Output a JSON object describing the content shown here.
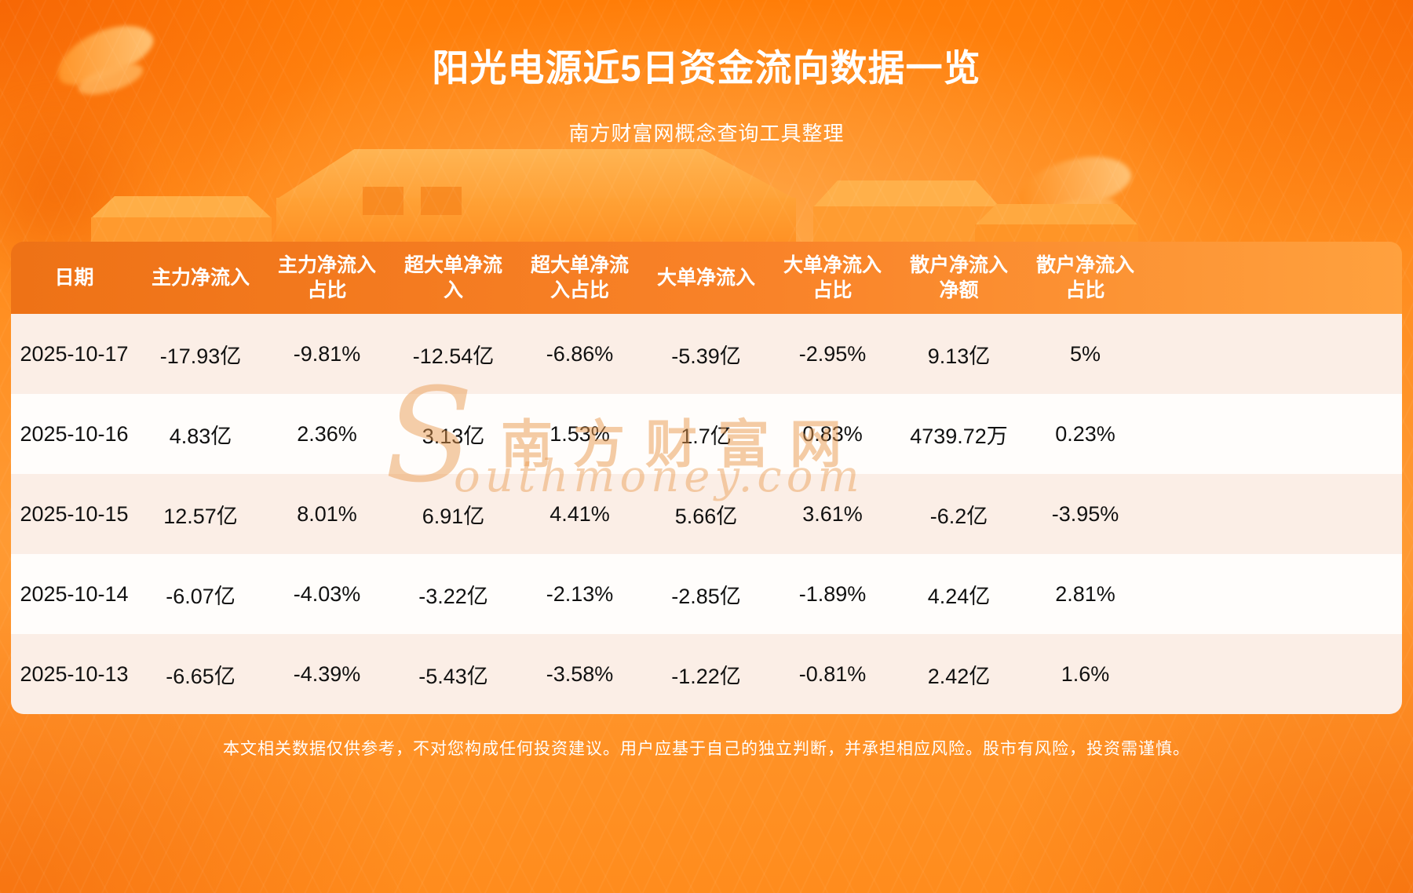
{
  "page": {
    "title": "阳光电源近5日资金流向数据一览",
    "subtitle": "南方财富网概念查询工具整理",
    "disclaimer": "本文相关数据仅供参考，不对您构成任何投资建议。用户应基于自己的独立判断，并承担相应风险。股市有风险，投资需谨慎。"
  },
  "watermark": {
    "initial": "S",
    "cn": "南方财富网",
    "en": "outhmoney.com"
  },
  "chart_data": {
    "type": "table",
    "title": "阳光电源近5日资金流向数据一览",
    "columns": [
      "日期",
      "主力净流入",
      "主力净流入占比",
      "超大单净流入",
      "超大单净流入占比",
      "大单净流入",
      "大单净流入占比",
      "散户净流入净额",
      "散户净流入占比"
    ],
    "rows": [
      [
        "2025-10-17",
        "-17.93亿",
        "-9.81%",
        "-12.54亿",
        "-6.86%",
        "-5.39亿",
        "-2.95%",
        "9.13亿",
        "5%"
      ],
      [
        "2025-10-16",
        "4.83亿",
        "2.36%",
        "3.13亿",
        "1.53%",
        "1.7亿",
        "0.83%",
        "4739.72万",
        "0.23%"
      ],
      [
        "2025-10-15",
        "12.57亿",
        "8.01%",
        "6.91亿",
        "4.41%",
        "5.66亿",
        "3.61%",
        "-6.2亿",
        "-3.95%"
      ],
      [
        "2025-10-14",
        "-6.07亿",
        "-4.03%",
        "-3.22亿",
        "-2.13%",
        "-2.85亿",
        "-1.89%",
        "4.24亿",
        "2.81%"
      ],
      [
        "2025-10-13",
        "-6.65亿",
        "-4.39%",
        "-5.43亿",
        "-3.58%",
        "-1.22亿",
        "-0.81%",
        "2.42亿",
        "1.6%"
      ]
    ]
  },
  "colors": {
    "header_gradient_left": "#ee7216",
    "header_gradient_right": "#ffa13e",
    "row_odd": "#fbeee6",
    "row_even": "#fffdfb",
    "table_text": "#111111",
    "background_orange": "#ff8c1a",
    "title_color": "#ffffff"
  }
}
